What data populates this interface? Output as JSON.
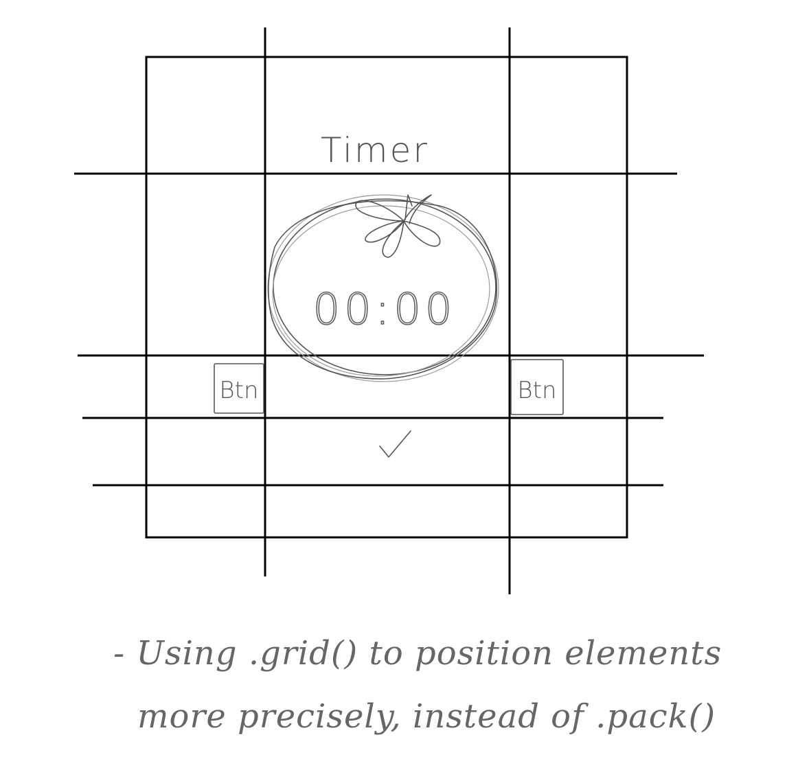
{
  "window": {
    "title": "Timer"
  },
  "timer": {
    "display": "00:00",
    "icon": "tomato-icon"
  },
  "buttons": {
    "left_label": "Btn",
    "right_label": "Btn",
    "confirm_icon": "checkmark-icon",
    "confirm_symbol": "✓"
  },
  "note": {
    "line1": "- Using .grid() to position elements",
    "line2": "more precisely, instead of .pack()"
  },
  "colors": {
    "grid": "#000000",
    "pencil": "#555555"
  }
}
